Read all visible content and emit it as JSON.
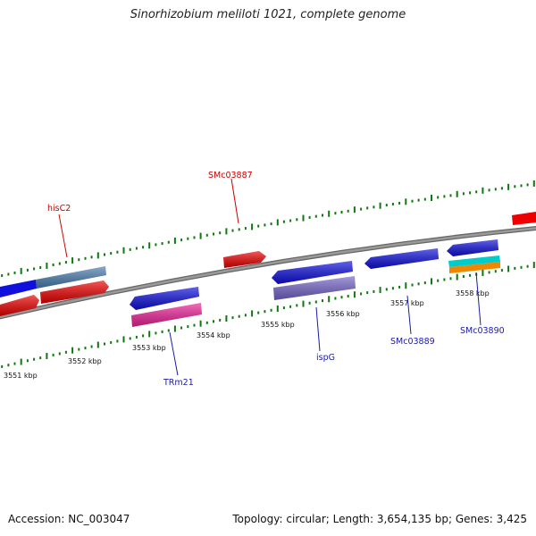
{
  "title": "Sinorhizobium meliloti 1021, complete genome",
  "footer": {
    "accession": "Accession: NC_003047",
    "info": "Topology: circular; Length: 3,654,135 bp; Genes: 3,425"
  },
  "scale_labels": [
    "3551 kbp",
    "3552 kbp",
    "3553 kbp",
    "3554 kbp",
    "3555 kbp",
    "3556 kbp",
    "3557 kbp",
    "3558 kbp"
  ],
  "gene_labels": [
    {
      "text": "hisC2",
      "color": "#cc0000"
    },
    {
      "text": "SMc03887",
      "color": "#cc0000"
    },
    {
      "text": "TRm21",
      "color": "#1a1aa6"
    },
    {
      "text": "ispG",
      "color": "#1a1aa6"
    },
    {
      "text": "SMc03889",
      "color": "#1a1aa6"
    },
    {
      "text": "SMc03890",
      "color": "#1a1aa6"
    }
  ],
  "feature_colors": {
    "cds_forward": "#ee0000",
    "cds_reverse": "#1010dd",
    "gene": "#4a7fb0",
    "trna_rna": "#ee2299",
    "gene_function": "#7766cc",
    "misc_a": "#00cccc",
    "misc_b": "#ee8800",
    "backbone": "#888888",
    "tick": "#117711"
  }
}
